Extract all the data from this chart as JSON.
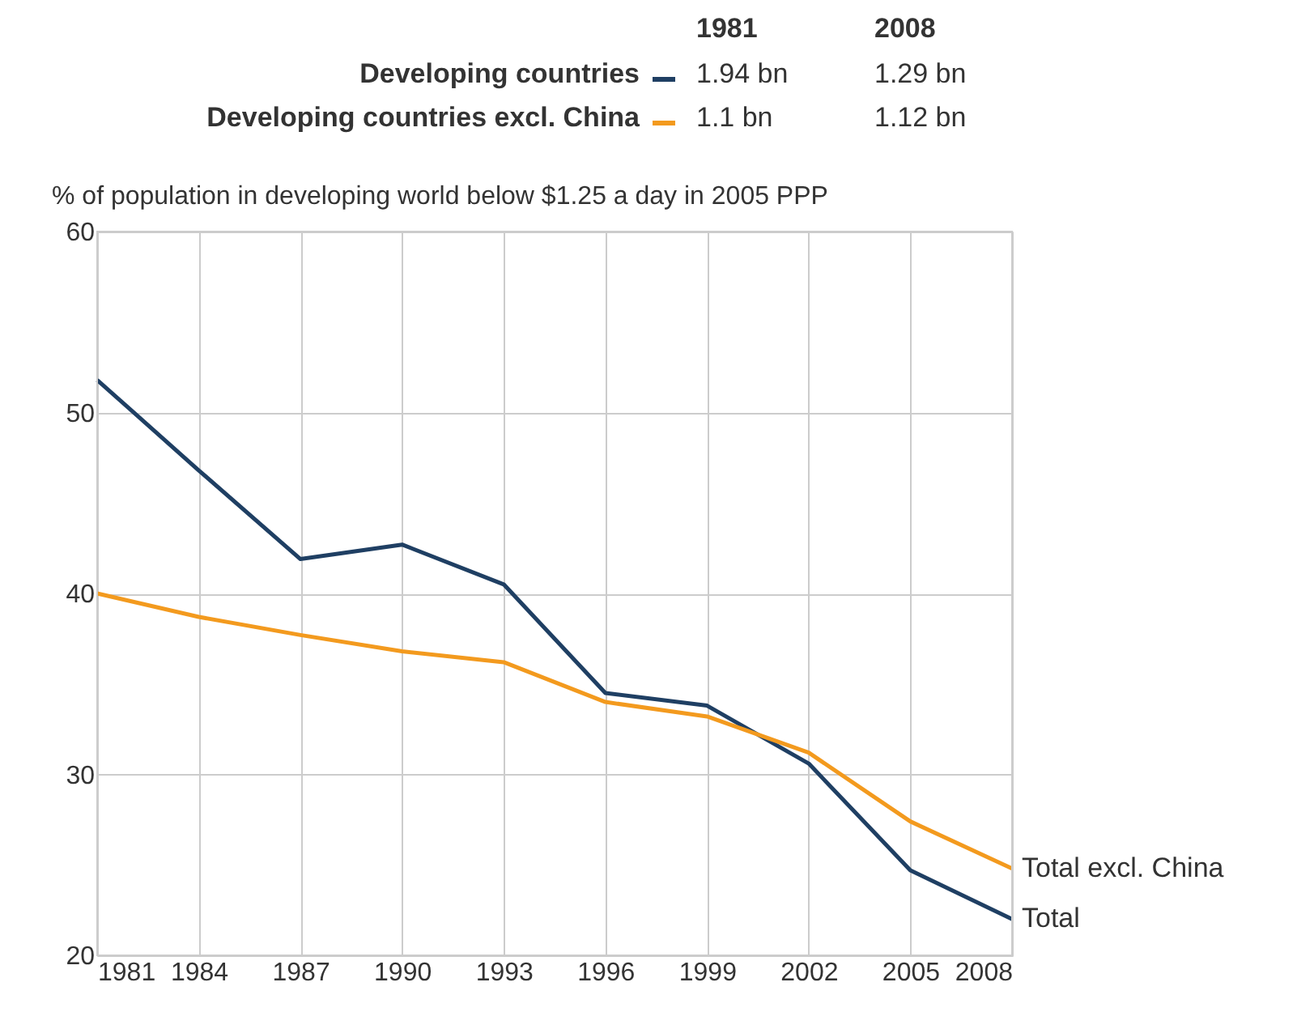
{
  "chart_data": {
    "type": "line",
    "subtitle": "% of population in developing world below $1.25 a day in 2005 PPP",
    "x": [
      1981,
      1984,
      1987,
      1990,
      1993,
      1996,
      1999,
      2002,
      2005,
      2008
    ],
    "series": [
      {
        "name": "Developing countries",
        "color": "#1f3f63",
        "values": [
          51.8,
          46.8,
          41.9,
          42.7,
          40.5,
          34.5,
          33.8,
          30.6,
          24.7,
          22.0
        ]
      },
      {
        "name": "Developing countries excl. China",
        "color": "#f39a1e",
        "values": [
          40.0,
          38.7,
          37.7,
          36.8,
          36.2,
          34.0,
          33.2,
          31.2,
          27.4,
          24.8
        ]
      }
    ],
    "xlim": [
      1981,
      2008
    ],
    "xticks": [
      1981,
      1984,
      1987,
      1990,
      1993,
      1996,
      1999,
      2002,
      2005,
      2008
    ],
    "ylim": [
      20,
      60
    ],
    "yticks": [
      20,
      30,
      40,
      50,
      60
    ],
    "grid": true,
    "legend": "top",
    "marker": "none",
    "line_style": "solid",
    "annotations": [
      "1981",
      "2008",
      "1.94 bn",
      "1.29 bn",
      "1.1 bn",
      "1.12 bn",
      {
        "text": "Total excl. China",
        "x": 2008,
        "y": 24.8
      },
      {
        "text": "Total",
        "x": 2008,
        "y": 22.0
      }
    ]
  }
}
